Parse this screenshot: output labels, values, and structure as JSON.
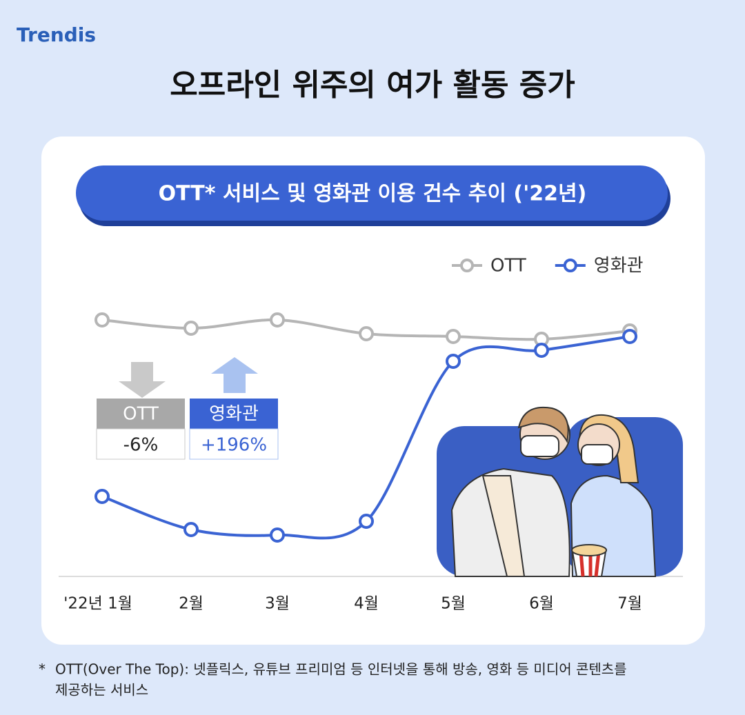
{
  "brand": "Trendis",
  "chart_data": {
    "type": "line",
    "title": "오프라인 위주의 여가 활동 증가",
    "subtitle": "OTT* 서비스 및 영화관 이용 건수 추이 ('22년)",
    "categories": [
      "'22년 1월",
      "2월",
      "3월",
      "4월",
      "5월",
      "6월",
      "7월"
    ],
    "ylim": [
      0,
      100
    ],
    "legend": "top-right",
    "series": [
      {
        "name": "OTT",
        "color": "#b5b5b5",
        "values": [
          93,
          90,
          93,
          88,
          87,
          86,
          89
        ]
      },
      {
        "name": "영화관",
        "color": "#3a63d3",
        "values": [
          29,
          17,
          15,
          20,
          78,
          82,
          87
        ]
      }
    ],
    "annotations": [
      {
        "label": "OTT",
        "text": "-6%"
      },
      {
        "label": "영화관",
        "text": "+196%"
      }
    ]
  },
  "footnote": {
    "marker": "*",
    "lines": [
      "OTT(Over The Top): 넷플릭스, 유튜브 프리미엄 등 인터넷을 통해 방송, 영화 등 미디어 콘텐츠를",
      "제공하는 서비스"
    ]
  }
}
